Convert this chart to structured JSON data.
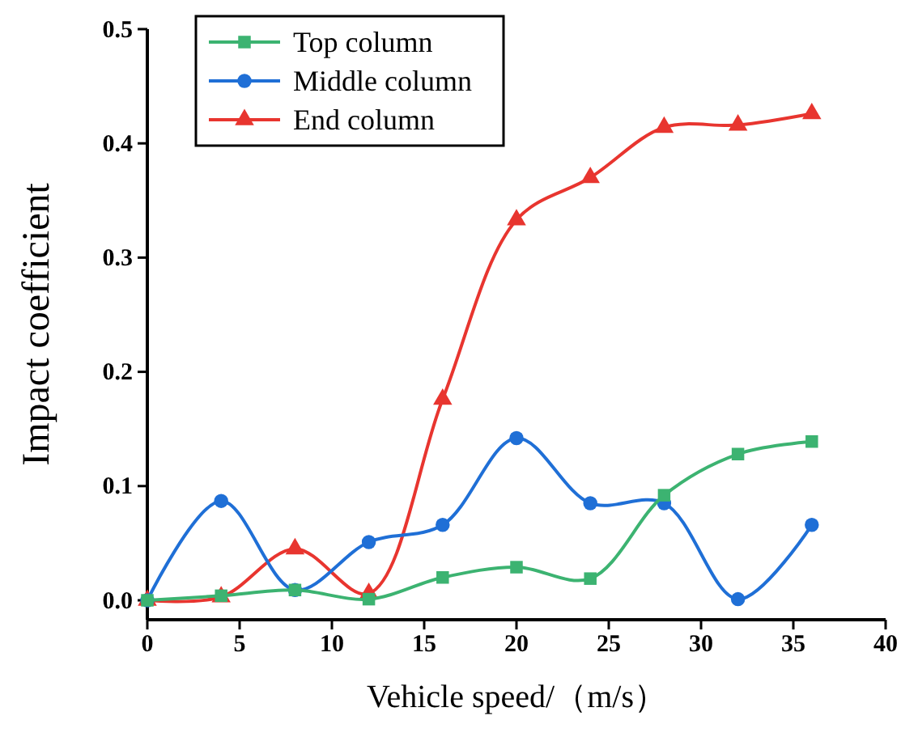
{
  "chart_data": {
    "type": "line",
    "xlabel": "Vehicle speed/（m/s）",
    "ylabel": "Impact coefficient",
    "x": [
      0,
      4,
      8,
      12,
      16,
      20,
      24,
      28,
      32,
      36
    ],
    "series": [
      {
        "name": "Top column",
        "color": "#3cb371",
        "marker": "square",
        "values": [
          0,
          0.004,
          0.009,
          0.001,
          0.02,
          0.029,
          0.019,
          0.092,
          0.128,
          0.139
        ]
      },
      {
        "name": "Middle column",
        "color": "#1f6fd6",
        "marker": "circle",
        "values": [
          0,
          0.087,
          0.009,
          0.051,
          0.066,
          0.142,
          0.085,
          0.085,
          0.001,
          0.066
        ]
      },
      {
        "name": "End column",
        "color": "#e8352f",
        "marker": "triangle",
        "values": [
          0,
          0.003,
          0.045,
          0.006,
          0.176,
          0.333,
          0.37,
          0.414,
          0.416,
          0.426
        ]
      }
    ],
    "xlim": [
      0,
      40
    ],
    "xticks": [
      0,
      5,
      10,
      15,
      20,
      25,
      30,
      35,
      40
    ],
    "ylim": [
      -0.017,
      0.5
    ],
    "yticks": [
      {
        "value": 0,
        "label": "0.0"
      },
      0.1,
      0.2,
      0.3,
      0.4,
      0.5
    ],
    "grid": false,
    "legend": "top left",
    "line_style": "solid"
  }
}
